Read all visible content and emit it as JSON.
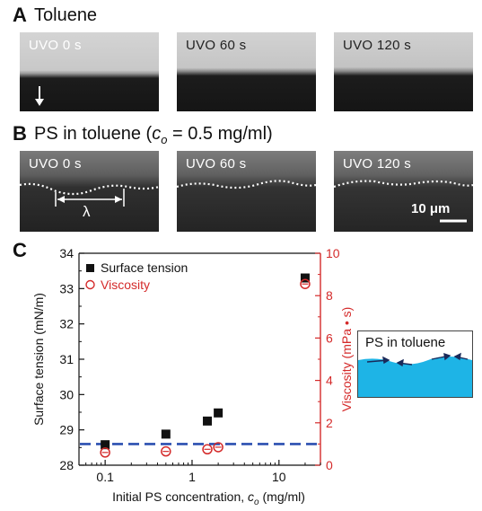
{
  "panel_a": {
    "letter": "A",
    "title": "Toluene",
    "images": [
      {
        "label": "UVO 0 s"
      },
      {
        "label": "UVO 60 s"
      },
      {
        "label": "UVO 120 s"
      }
    ]
  },
  "panel_b": {
    "letter": "B",
    "title_prefix": "PS in toluene (",
    "title_var": "c",
    "title_sub": "o",
    "title_suffix": " = 0.5 mg/ml)",
    "images": [
      {
        "label": "UVO 0 s"
      },
      {
        "label": "UVO 60 s"
      },
      {
        "label": "UVO 120 s"
      }
    ],
    "wavelength_symbol": "λ",
    "scale_bar": "10 μm"
  },
  "panel_c": {
    "letter": "C",
    "inset_title": "PS in toluene",
    "colors": {
      "surface": "#111111",
      "viscosity": "#d42a2a",
      "dashed": "#2a4fb0",
      "liquid": "#1eb4e6"
    }
  },
  "chart_data": {
    "type": "scatter",
    "x_scale": "log",
    "xlabel_prefix": "Initial PS concentration, ",
    "xlabel_var": "c",
    "xlabel_sub": "o",
    "xlabel_suffix": " (mg/ml)",
    "xlim": [
      0.05,
      30
    ],
    "x_ticks": [
      {
        "value": 0.1,
        "label": "0.1"
      },
      {
        "value": 1,
        "label": "1"
      },
      {
        "value": 10,
        "label": "10"
      }
    ],
    "ylabel_left": "Surface tension (mN/m)",
    "ylim_left": [
      28,
      34
    ],
    "y_ticks_left": [
      28,
      29,
      30,
      31,
      32,
      33,
      34
    ],
    "ylabel_right": "Viscosity (mPa • s)",
    "ylim_right": [
      0,
      10
    ],
    "y_ticks_right": [
      0,
      2,
      4,
      6,
      8,
      10
    ],
    "reference_line_left": 28.6,
    "legend_position": "top-left",
    "series": [
      {
        "name": "Surface tension",
        "axis": "left",
        "marker": "square",
        "x": [
          0.1,
          0.5,
          1.5,
          2,
          20
        ],
        "y": [
          28.58,
          28.88,
          29.25,
          29.48,
          33.3
        ]
      },
      {
        "name": "Viscosity",
        "axis": "right",
        "marker": "circle-plus",
        "x": [
          0.1,
          0.5,
          1.5,
          2,
          20
        ],
        "y": [
          0.6,
          0.65,
          0.75,
          0.85,
          8.55
        ]
      }
    ]
  }
}
